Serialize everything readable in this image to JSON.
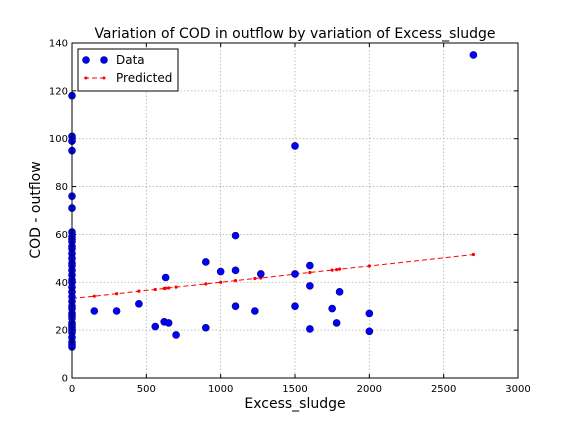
{
  "chart_data": {
    "type": "scatter",
    "title": "Variation of COD in outflow by variation of Excess_sludge",
    "xlabel": "Excess_sludge",
    "ylabel": "COD - outflow",
    "xlim": [
      0,
      3000
    ],
    "ylim": [
      0,
      140
    ],
    "xticks": [
      0,
      500,
      1000,
      1500,
      2000,
      2500,
      3000
    ],
    "yticks": [
      0,
      20,
      40,
      60,
      80,
      100,
      120,
      140
    ],
    "grid": true,
    "legend": {
      "location": "top-left",
      "entries": [
        "Data",
        "Predicted"
      ]
    },
    "series": [
      {
        "name": "Data",
        "style": "markers",
        "color": "#0000ff",
        "points": [
          [
            0,
            118
          ],
          [
            0,
            101
          ],
          [
            0,
            99
          ],
          [
            0,
            95
          ],
          [
            0,
            76
          ],
          [
            0,
            71
          ],
          [
            0,
            61
          ],
          [
            0,
            59
          ],
          [
            0,
            58
          ],
          [
            0,
            57
          ],
          [
            0,
            55
          ],
          [
            0,
            54
          ],
          [
            0,
            52
          ],
          [
            0,
            50
          ],
          [
            0,
            48
          ],
          [
            0,
            47
          ],
          [
            0,
            45
          ],
          [
            0,
            43
          ],
          [
            0,
            41
          ],
          [
            0,
            40
          ],
          [
            0,
            38
          ],
          [
            0,
            36
          ],
          [
            0,
            34
          ],
          [
            0,
            32
          ],
          [
            0,
            30
          ],
          [
            0,
            29
          ],
          [
            0,
            27
          ],
          [
            0,
            26
          ],
          [
            0,
            25
          ],
          [
            0,
            23
          ],
          [
            0,
            22
          ],
          [
            0,
            21
          ],
          [
            0,
            20
          ],
          [
            0,
            19
          ],
          [
            0,
            17
          ],
          [
            0,
            15
          ],
          [
            0,
            14
          ],
          [
            0,
            13
          ],
          [
            150,
            28
          ],
          [
            300,
            28
          ],
          [
            450,
            31
          ],
          [
            560,
            21.5
          ],
          [
            620,
            23.5
          ],
          [
            630,
            42
          ],
          [
            650,
            23
          ],
          [
            700,
            18
          ],
          [
            900,
            48.5
          ],
          [
            900,
            21
          ],
          [
            1000,
            44.5
          ],
          [
            1100,
            59.5
          ],
          [
            1100,
            45
          ],
          [
            1100,
            30
          ],
          [
            1230,
            28
          ],
          [
            1270,
            43.5
          ],
          [
            1500,
            97
          ],
          [
            1500,
            43.5
          ],
          [
            1500,
            30
          ],
          [
            1600,
            47
          ],
          [
            1600,
            38.5
          ],
          [
            1600,
            20.5
          ],
          [
            1750,
            29
          ],
          [
            1780,
            23
          ],
          [
            1800,
            36
          ],
          [
            2000,
            27
          ],
          [
            2000,
            19.5
          ],
          [
            2700,
            135
          ]
        ]
      },
      {
        "name": "Predicted",
        "style": "dashed-line-with-markers",
        "color": "#ff0000",
        "points": [
          [
            0,
            33.2
          ],
          [
            150,
            34.2
          ],
          [
            300,
            35.2
          ],
          [
            450,
            36.3
          ],
          [
            560,
            37.0
          ],
          [
            620,
            37.4
          ],
          [
            630,
            37.5
          ],
          [
            650,
            37.6
          ],
          [
            700,
            38.0
          ],
          [
            900,
            39.3
          ],
          [
            1000,
            40.0
          ],
          [
            1100,
            40.7
          ],
          [
            1230,
            41.6
          ],
          [
            1270,
            41.8
          ],
          [
            1500,
            43.4
          ],
          [
            1600,
            44.1
          ],
          [
            1750,
            45.1
          ],
          [
            1780,
            45.3
          ],
          [
            1800,
            45.5
          ],
          [
            2000,
            46.8
          ],
          [
            2700,
            51.6
          ]
        ]
      }
    ]
  }
}
